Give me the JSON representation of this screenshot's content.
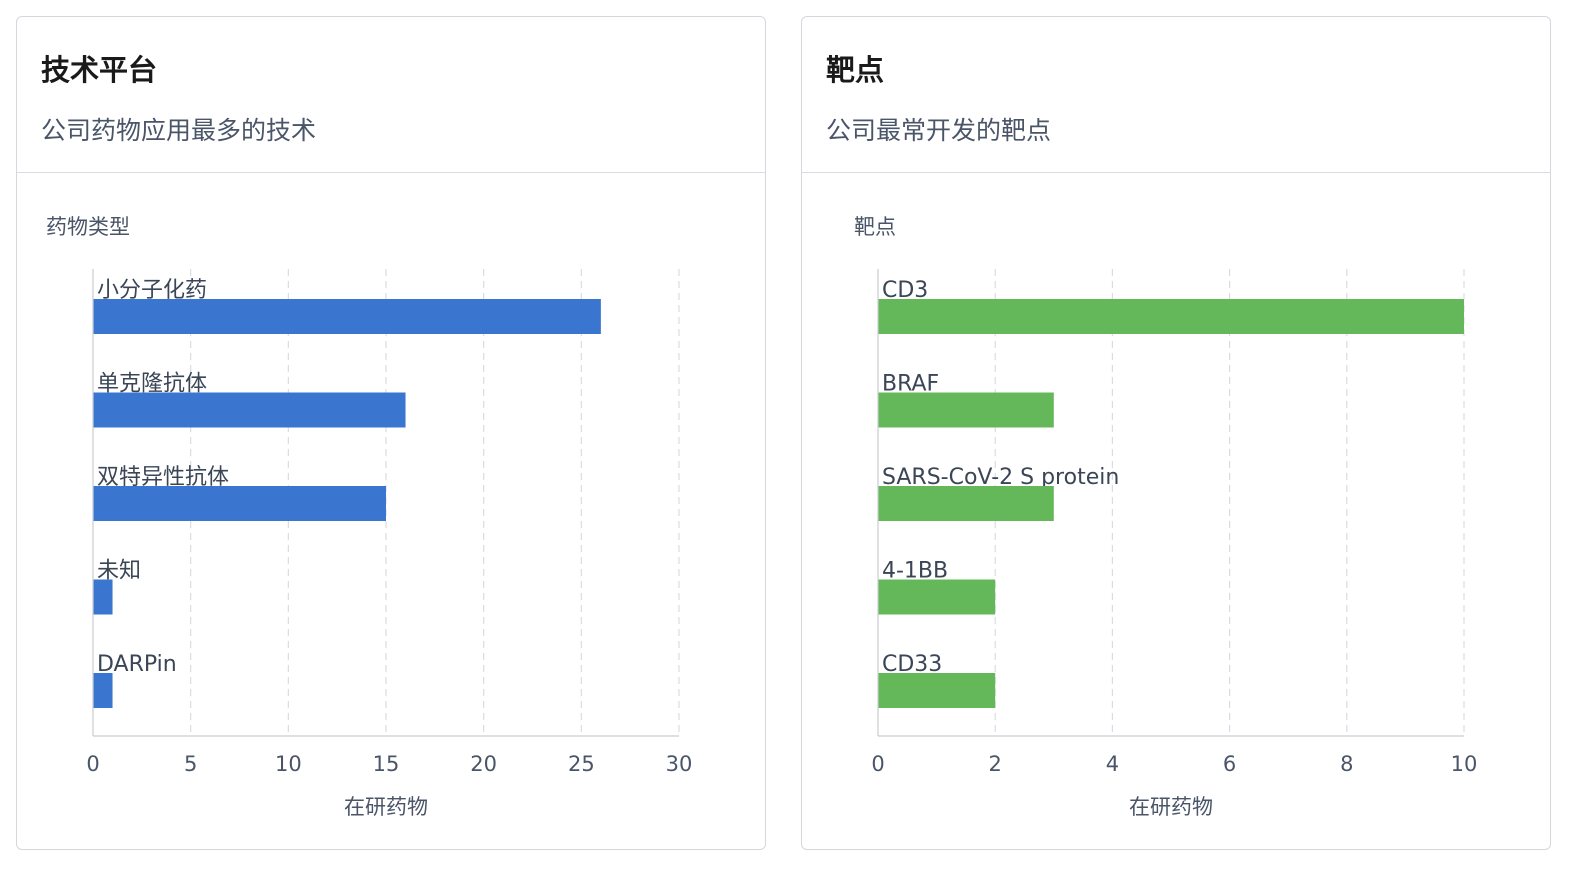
{
  "chart_data": [
    {
      "type": "bar",
      "orientation": "horizontal",
      "title": "技术平台",
      "subtitle": "公司药物应用最多的技术",
      "ylabel": "药物类型",
      "xlabel": "在研药物",
      "categories": [
        "小分子化药",
        "单克隆抗体",
        "双特异性抗体",
        "未知",
        "DARPin"
      ],
      "values": [
        26,
        16,
        15,
        1,
        1
      ],
      "xlim": [
        0,
        30
      ],
      "xticks": [
        0,
        5,
        10,
        15,
        20,
        25,
        30
      ],
      "color": "#3a76d0",
      "grid": true
    },
    {
      "type": "bar",
      "orientation": "horizontal",
      "title": "靶点",
      "subtitle": "公司最常开发的靶点",
      "ylabel": "靶点",
      "xlabel": "在研药物",
      "categories": [
        "CD3",
        "BRAF",
        "SARS-CoV-2 S protein",
        "4-1BB",
        "CD33"
      ],
      "values": [
        10,
        3,
        3,
        2,
        2
      ],
      "xlim": [
        0,
        10
      ],
      "xticks": [
        0,
        2,
        4,
        6,
        8,
        10
      ],
      "color": "#64b85a",
      "grid": true
    }
  ]
}
